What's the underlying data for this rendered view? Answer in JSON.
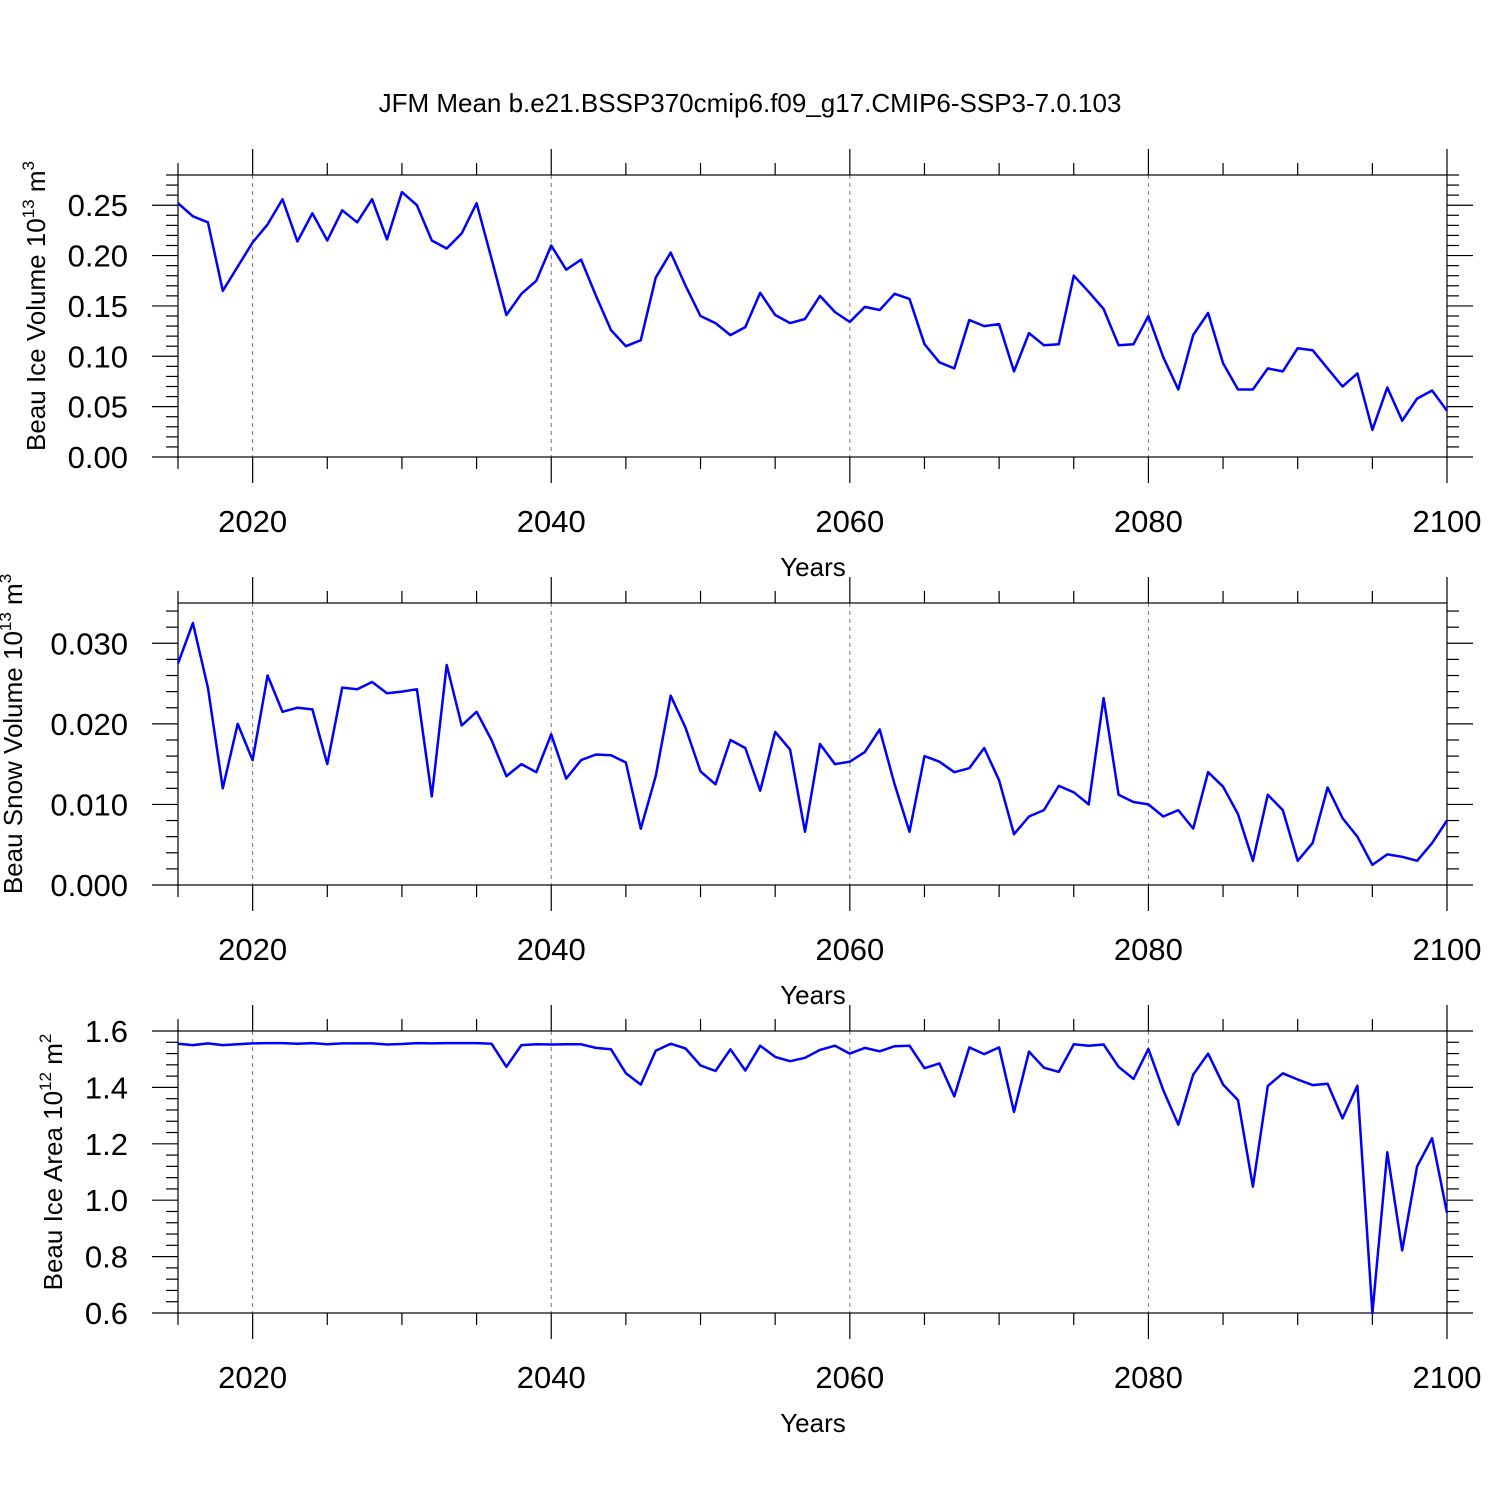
{
  "title": "JFM Mean b.e21.BSSP370cmip6.f09_g17.CMIP6-SSP3-7.0.103",
  "chart_data": [
    {
      "type": "line",
      "ylabel": "Beau Ice Volume 10",
      "ylabel_exp": "13",
      "ylabel_unit": " m",
      "ylabel_unit_exp": "3",
      "xlabel": "Years",
      "xlim": [
        2015,
        2100
      ],
      "ylim": [
        0,
        0.28
      ],
      "yticks": [
        0.0,
        0.05,
        0.1,
        0.15,
        0.2,
        0.25
      ],
      "ytick_labels": [
        "0.00",
        "0.05",
        "0.10",
        "0.15",
        "0.20",
        "0.25"
      ],
      "xticks": [
        2020,
        2040,
        2060,
        2080,
        2100
      ],
      "xtick_labels": [
        "2020",
        "2040",
        "2060",
        "2080",
        "2100"
      ],
      "grid": "dashed vertical at major x ticks",
      "series": [
        {
          "name": "Beau Ice Volume",
          "color": "#0000ff",
          "x": [
            2015,
            2016,
            2017,
            2018,
            2019,
            2020,
            2021,
            2022,
            2023,
            2024,
            2025,
            2026,
            2027,
            2028,
            2029,
            2030,
            2031,
            2032,
            2033,
            2034,
            2035,
            2036,
            2037,
            2038,
            2039,
            2040,
            2041,
            2042,
            2043,
            2044,
            2045,
            2046,
            2047,
            2048,
            2049,
            2050,
            2051,
            2052,
            2053,
            2054,
            2055,
            2056,
            2057,
            2058,
            2059,
            2060,
            2061,
            2062,
            2063,
            2064,
            2065,
            2066,
            2067,
            2068,
            2069,
            2070,
            2071,
            2072,
            2073,
            2074,
            2075,
            2076,
            2077,
            2078,
            2079,
            2080,
            2081,
            2082,
            2083,
            2084,
            2085,
            2086,
            2087,
            2088,
            2089,
            2090,
            2091,
            2092,
            2093,
            2094,
            2095,
            2096,
            2097,
            2098,
            2099,
            2100
          ],
          "values": [
            0.252,
            0.239,
            0.233,
            0.165,
            0.189,
            0.213,
            0.231,
            0.256,
            0.214,
            0.242,
            0.215,
            0.245,
            0.233,
            0.256,
            0.216,
            0.263,
            0.25,
            0.215,
            0.207,
            0.222,
            0.252,
            0.197,
            0.141,
            0.162,
            0.175,
            0.21,
            0.186,
            0.196,
            0.16,
            0.126,
            0.11,
            0.116,
            0.178,
            0.203,
            0.17,
            0.14,
            0.133,
            0.121,
            0.129,
            0.163,
            0.141,
            0.133,
            0.137,
            0.16,
            0.144,
            0.134,
            0.149,
            0.146,
            0.162,
            0.157,
            0.112,
            0.094,
            0.088,
            0.136,
            0.13,
            0.132,
            0.085,
            0.123,
            0.111,
            0.112,
            0.18,
            0.164,
            0.147,
            0.111,
            0.112,
            0.14,
            0.099,
            0.067,
            0.121,
            0.143,
            0.093,
            0.067,
            0.067,
            0.088,
            0.085,
            0.108,
            0.106,
            0.088,
            0.07,
            0.083,
            0.027,
            0.069,
            0.036,
            0.058,
            0.066,
            0.046
          ]
        }
      ]
    },
    {
      "type": "line",
      "ylabel": "Beau Snow Volume 10",
      "ylabel_exp": "13",
      "ylabel_unit": " m",
      "ylabel_unit_exp": "3",
      "xlabel": "Years",
      "xlim": [
        2015,
        2100
      ],
      "ylim": [
        0,
        0.035
      ],
      "yticks": [
        0.0,
        0.01,
        0.02,
        0.03
      ],
      "ytick_labels": [
        "0.000",
        "0.010",
        "0.020",
        "0.030"
      ],
      "xticks": [
        2020,
        2040,
        2060,
        2080,
        2100
      ],
      "xtick_labels": [
        "2020",
        "2040",
        "2060",
        "2080",
        "2100"
      ],
      "grid": "dashed vertical at major x ticks",
      "series": [
        {
          "name": "Beau Snow Volume",
          "color": "#0000ff",
          "x": [
            2015,
            2016,
            2017,
            2018,
            2019,
            2020,
            2021,
            2022,
            2023,
            2024,
            2025,
            2026,
            2027,
            2028,
            2029,
            2030,
            2031,
            2032,
            2033,
            2034,
            2035,
            2036,
            2037,
            2038,
            2039,
            2040,
            2041,
            2042,
            2043,
            2044,
            2045,
            2046,
            2047,
            2048,
            2049,
            2050,
            2051,
            2052,
            2053,
            2054,
            2055,
            2056,
            2057,
            2058,
            2059,
            2060,
            2061,
            2062,
            2063,
            2064,
            2065,
            2066,
            2067,
            2068,
            2069,
            2070,
            2071,
            2072,
            2073,
            2074,
            2075,
            2076,
            2077,
            2078,
            2079,
            2080,
            2081,
            2082,
            2083,
            2084,
            2085,
            2086,
            2087,
            2088,
            2089,
            2090,
            2091,
            2092,
            2093,
            2094,
            2095,
            2096,
            2097,
            2098,
            2099,
            2100
          ],
          "values": [
            0.0275,
            0.0325,
            0.0245,
            0.012,
            0.02,
            0.0155,
            0.026,
            0.0215,
            0.022,
            0.0218,
            0.015,
            0.0245,
            0.0243,
            0.0252,
            0.0238,
            0.024,
            0.0243,
            0.011,
            0.0273,
            0.0198,
            0.0215,
            0.018,
            0.0135,
            0.015,
            0.014,
            0.0187,
            0.0132,
            0.0155,
            0.0162,
            0.0161,
            0.0152,
            0.007,
            0.0135,
            0.0235,
            0.0195,
            0.0141,
            0.0125,
            0.018,
            0.017,
            0.0117,
            0.019,
            0.0168,
            0.0066,
            0.0175,
            0.015,
            0.0153,
            0.0165,
            0.0193,
            0.0125,
            0.0066,
            0.016,
            0.0153,
            0.014,
            0.0145,
            0.017,
            0.013,
            0.0063,
            0.0085,
            0.0093,
            0.0123,
            0.0115,
            0.01,
            0.0232,
            0.0112,
            0.0103,
            0.01,
            0.0085,
            0.0093,
            0.007,
            0.014,
            0.0122,
            0.0088,
            0.003,
            0.0112,
            0.0093,
            0.003,
            0.0052,
            0.0121,
            0.0083,
            0.006,
            0.0025,
            0.0038,
            0.0035,
            0.003,
            0.0052,
            0.008
          ]
        }
      ]
    },
    {
      "type": "line",
      "ylabel": "Beau Ice Area 10",
      "ylabel_exp": "12",
      "ylabel_unit": " m",
      "ylabel_unit_exp": "2",
      "xlabel": "Years",
      "xlim": [
        2015,
        2100
      ],
      "ylim": [
        0.6,
        1.6
      ],
      "yticks": [
        0.6,
        0.8,
        1.0,
        1.2,
        1.4,
        1.6
      ],
      "ytick_labels": [
        "0.6",
        "0.8",
        "1.0",
        "1.2",
        "1.4",
        "1.6"
      ],
      "xticks": [
        2020,
        2040,
        2060,
        2080,
        2100
      ],
      "xtick_labels": [
        "2020",
        "2040",
        "2060",
        "2080",
        "2100"
      ],
      "grid": "dashed vertical at major x ticks",
      "series": [
        {
          "name": "Beau Ice Area",
          "color": "#0000ff",
          "x": [
            2015,
            2016,
            2017,
            2018,
            2019,
            2020,
            2021,
            2022,
            2023,
            2024,
            2025,
            2026,
            2027,
            2028,
            2029,
            2030,
            2031,
            2032,
            2033,
            2034,
            2035,
            2036,
            2037,
            2038,
            2039,
            2040,
            2041,
            2042,
            2043,
            2044,
            2045,
            2046,
            2047,
            2048,
            2049,
            2050,
            2051,
            2052,
            2053,
            2054,
            2055,
            2056,
            2057,
            2058,
            2059,
            2060,
            2061,
            2062,
            2063,
            2064,
            2065,
            2066,
            2067,
            2068,
            2069,
            2070,
            2071,
            2072,
            2073,
            2074,
            2075,
            2076,
            2077,
            2078,
            2079,
            2080,
            2081,
            2082,
            2083,
            2084,
            2085,
            2086,
            2087,
            2088,
            2089,
            2090,
            2091,
            2092,
            2093,
            2094,
            2095,
            2096,
            2097,
            2098,
            2099,
            2100
          ],
          "values": [
            1.555,
            1.55,
            1.556,
            1.55,
            1.553,
            1.556,
            1.557,
            1.557,
            1.555,
            1.557,
            1.553,
            1.556,
            1.556,
            1.556,
            1.552,
            1.554,
            1.557,
            1.556,
            1.557,
            1.557,
            1.557,
            1.555,
            1.473,
            1.55,
            1.553,
            1.552,
            1.553,
            1.553,
            1.54,
            1.535,
            1.45,
            1.41,
            1.53,
            1.555,
            1.538,
            1.478,
            1.458,
            1.535,
            1.46,
            1.548,
            1.508,
            1.493,
            1.505,
            1.533,
            1.548,
            1.52,
            1.54,
            1.528,
            1.546,
            1.548,
            1.468,
            1.485,
            1.368,
            1.542,
            1.518,
            1.542,
            1.313,
            1.527,
            1.47,
            1.455,
            1.553,
            1.548,
            1.552,
            1.473,
            1.43,
            1.536,
            1.39,
            1.268,
            1.445,
            1.52,
            1.41,
            1.355,
            1.048,
            1.405,
            1.45,
            1.428,
            1.408,
            1.413,
            1.29,
            1.406,
            0.6,
            1.17,
            0.822,
            1.12,
            1.22,
            0.955
          ]
        }
      ]
    }
  ]
}
